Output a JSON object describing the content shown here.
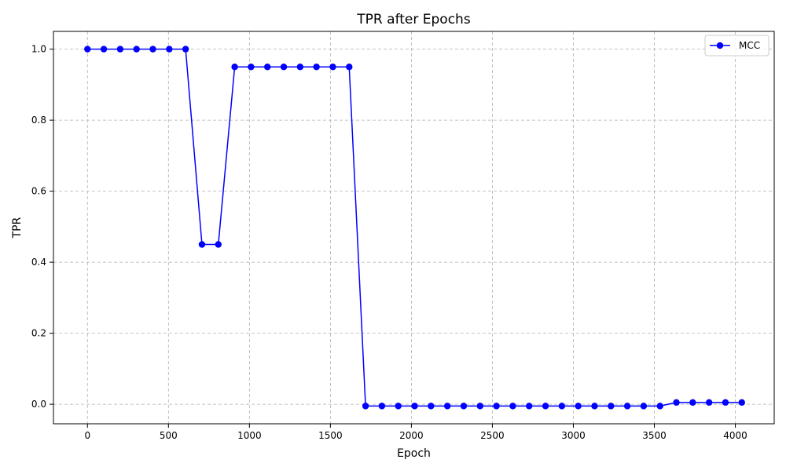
{
  "chart_data": {
    "type": "line",
    "title": "TPR after Epochs",
    "xlabel": "Epoch",
    "ylabel": "TPR",
    "xlim": [
      -210,
      4240
    ],
    "ylim": [
      -0.055,
      1.05
    ],
    "xticks": [
      0,
      500,
      1000,
      1500,
      2000,
      2500,
      3000,
      3500,
      4000
    ],
    "yticks": [
      0.0,
      0.2,
      0.4,
      0.6,
      0.8,
      1.0
    ],
    "xtick_labels": [
      "0",
      "500",
      "1000",
      "1500",
      "2000",
      "2500",
      "3000",
      "3500",
      "4000"
    ],
    "ytick_labels": [
      "0.0",
      "0.2",
      "0.4",
      "0.6",
      "0.8",
      "1.0"
    ],
    "grid": true,
    "grid_style": "dashed",
    "legend_position": "top-right",
    "series": [
      {
        "name": "MCC",
        "color": "#0000ff",
        "marker": "circle",
        "x": [
          0,
          101,
          202,
          303,
          404,
          505,
          606,
          707,
          808,
          909,
          1010,
          1111,
          1212,
          1313,
          1414,
          1515,
          1616,
          1717,
          1818,
          1919,
          2020,
          2121,
          2222,
          2323,
          2424,
          2525,
          2626,
          2727,
          2828,
          2929,
          3030,
          3131,
          3232,
          3333,
          3434,
          3535,
          3636,
          3737,
          3838,
          3939,
          4040
        ],
        "y": [
          1.0,
          1.0,
          1.0,
          1.0,
          1.0,
          1.0,
          1.0,
          0.45,
          0.45,
          0.95,
          0.95,
          0.95,
          0.95,
          0.95,
          0.95,
          0.95,
          0.95,
          -0.005,
          -0.005,
          -0.005,
          -0.005,
          -0.005,
          -0.005,
          -0.005,
          -0.005,
          -0.005,
          -0.005,
          -0.005,
          -0.005,
          -0.005,
          -0.005,
          -0.005,
          -0.005,
          -0.005,
          -0.005,
          -0.005,
          0.005,
          0.005,
          0.005,
          0.005,
          0.005
        ]
      }
    ]
  }
}
